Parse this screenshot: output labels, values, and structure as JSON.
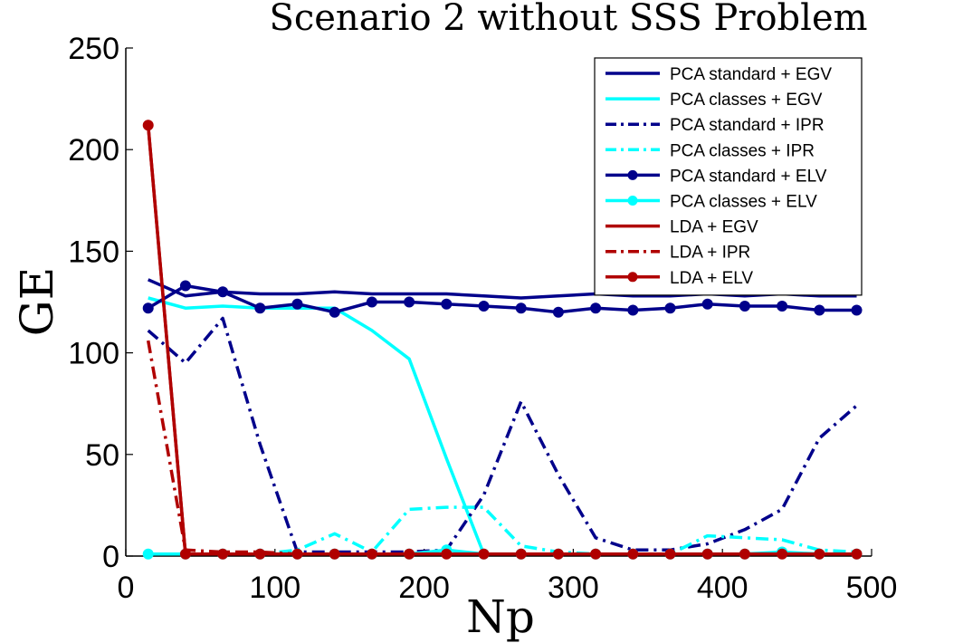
{
  "chart_data": {
    "type": "line",
    "title": "Scenario 2 without SSS Problem",
    "xlabel": "Np",
    "ylabel": "GE",
    "xlim": [
      0,
      500
    ],
    "ylim": [
      0,
      250
    ],
    "xticks": [
      "0",
      "100",
      "200",
      "300",
      "400",
      "500"
    ],
    "yticks": [
      "0",
      "50",
      "100",
      "150",
      "200",
      "250"
    ],
    "grid": false,
    "legend_position": "top-right",
    "x": [
      15,
      40,
      65,
      90,
      115,
      140,
      165,
      190,
      215,
      240,
      265,
      290,
      315,
      340,
      365,
      390,
      415,
      440,
      465,
      490
    ],
    "series": [
      {
        "name": "PCA standard + EGV",
        "color": "#00008B",
        "style": "solid",
        "marker": false,
        "values": [
          136,
          128,
          130,
          129,
          129,
          130,
          129,
          129,
          129,
          128,
          127,
          128,
          129,
          128,
          128,
          129,
          128,
          129,
          128,
          128
        ]
      },
      {
        "name": "PCA classes + EGV",
        "color": "#00FFFF",
        "style": "solid",
        "marker": false,
        "values": [
          127,
          122,
          123,
          122,
          122,
          122,
          111,
          97,
          48,
          1,
          1,
          1,
          1,
          1,
          1,
          1,
          1,
          1,
          1,
          1
        ]
      },
      {
        "name": "PCA standard + IPR",
        "color": "#00008B",
        "style": "dashdot",
        "marker": false,
        "values": [
          111,
          95,
          117,
          55,
          2,
          2,
          2,
          2,
          3,
          30,
          76,
          40,
          9,
          3,
          3,
          6,
          13,
          23,
          58,
          74
        ]
      },
      {
        "name": "PCA classes + IPR",
        "color": "#00FFFF",
        "style": "dashdot",
        "marker": false,
        "values": [
          1,
          1,
          1,
          1,
          3,
          11,
          2,
          23,
          24,
          24,
          5,
          2,
          1,
          1,
          1,
          10,
          9,
          8,
          3,
          2
        ]
      },
      {
        "name": "PCA standard + ELV",
        "color": "#00008B",
        "style": "solid",
        "marker": true,
        "values": [
          122,
          133,
          130,
          122,
          124,
          120,
          125,
          125,
          124,
          123,
          122,
          120,
          122,
          121,
          122,
          124,
          123,
          123,
          121,
          121
        ]
      },
      {
        "name": "PCA classes + ELV",
        "color": "#00FFFF",
        "style": "solid",
        "marker": true,
        "values": [
          1,
          1,
          1,
          1,
          1,
          1,
          1,
          1,
          3,
          1,
          1,
          1,
          1,
          1,
          1,
          1,
          1,
          2,
          1,
          1
        ]
      },
      {
        "name": "LDA + EGV",
        "color": "#B00000",
        "style": "solid",
        "marker": false,
        "values": [
          212,
          1,
          1,
          1,
          1,
          1,
          1,
          1,
          1,
          1,
          1,
          1,
          1,
          1,
          1,
          1,
          1,
          1,
          1,
          1
        ]
      },
      {
        "name": "LDA + IPR",
        "color": "#B00000",
        "style": "dashdot",
        "marker": false,
        "values": [
          106,
          3,
          2,
          2,
          1,
          1,
          1,
          1,
          1,
          1,
          1,
          1,
          1,
          1,
          1,
          1,
          1,
          1,
          1,
          1
        ]
      },
      {
        "name": "LDA + ELV",
        "color": "#B00000",
        "style": "solid",
        "marker": true,
        "values": [
          212,
          1,
          1,
          1,
          1,
          1,
          1,
          1,
          1,
          1,
          1,
          1,
          1,
          1,
          1,
          1,
          1,
          1,
          1,
          1
        ]
      }
    ]
  }
}
